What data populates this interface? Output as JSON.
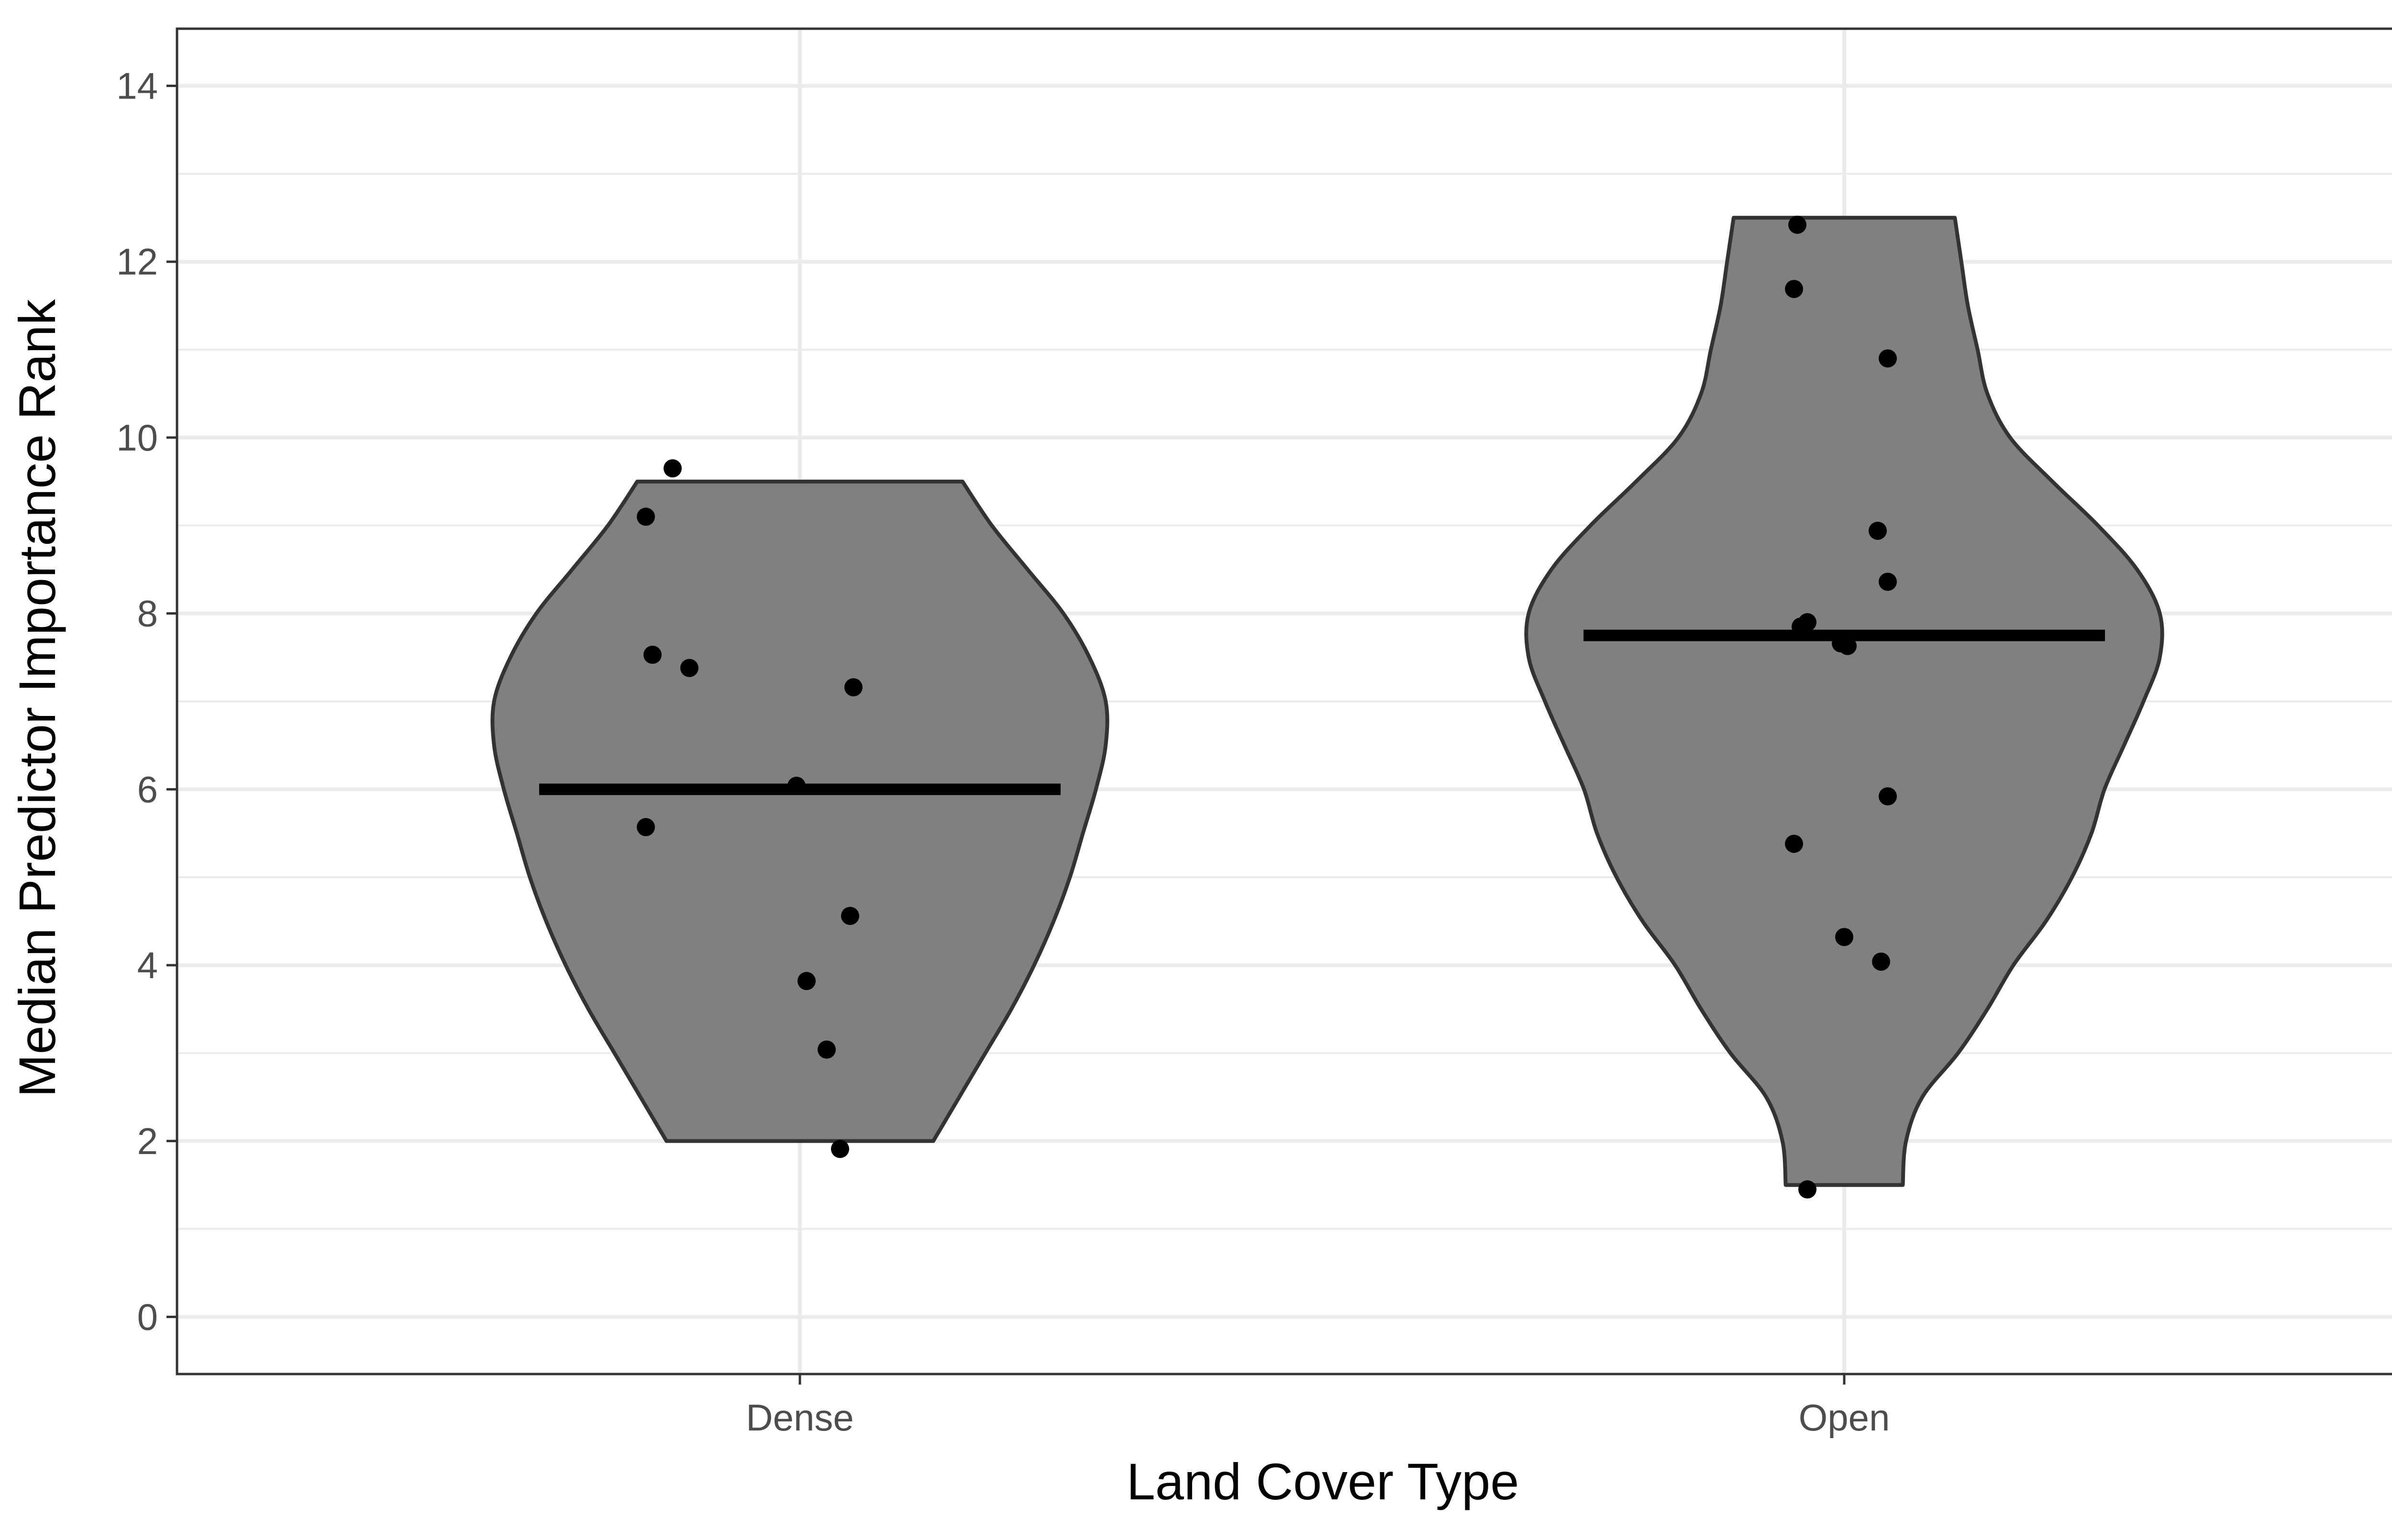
{
  "chart_data": {
    "type": "violin",
    "title": "",
    "xlabel": "Land Cover Type",
    "ylabel": "Median Predictor Importance Rank",
    "categories": [
      "Dense",
      "Open"
    ],
    "ylim": [
      -0.65,
      14.65
    ],
    "yticks": [
      0,
      2,
      4,
      6,
      8,
      10,
      12,
      14
    ],
    "yminor": [
      1,
      3,
      5,
      7,
      9,
      11,
      13
    ],
    "grid": true,
    "legend": "none",
    "colors": {
      "violin_fill": "#808080",
      "violin_stroke": "#333333",
      "points": "#000000",
      "median": "#000000",
      "panel_border": "#333333",
      "grid": "#ebebeb"
    },
    "series": [
      {
        "category": "Dense",
        "median": 6.0,
        "range": [
          2.0,
          9.5
        ],
        "density_profile": [
          [
            2.0,
            0.41
          ],
          [
            2.5,
            0.49
          ],
          [
            3.0,
            0.57
          ],
          [
            3.5,
            0.65
          ],
          [
            4.0,
            0.72
          ],
          [
            4.5,
            0.78
          ],
          [
            5.0,
            0.83
          ],
          [
            5.5,
            0.87
          ],
          [
            6.0,
            0.91
          ],
          [
            6.5,
            0.94
          ],
          [
            7.0,
            0.94
          ],
          [
            7.5,
            0.89
          ],
          [
            8.0,
            0.81
          ],
          [
            8.5,
            0.7
          ],
          [
            9.0,
            0.59
          ],
          [
            9.5,
            0.5
          ]
        ],
        "points": [
          {
            "jitter": 0.12,
            "y": 9.65
          },
          {
            "jitter": 0.04,
            "y": 9.1
          },
          {
            "jitter": 0.06,
            "y": 7.53
          },
          {
            "jitter": 0.17,
            "y": 7.38
          },
          {
            "jitter": 0.66,
            "y": 7.16
          },
          {
            "jitter": 0.49,
            "y": 6.04
          },
          {
            "jitter": 0.04,
            "y": 5.57
          },
          {
            "jitter": 0.65,
            "y": 4.56
          },
          {
            "jitter": 0.52,
            "y": 3.82
          },
          {
            "jitter": 0.58,
            "y": 3.04
          },
          {
            "jitter": 0.62,
            "y": 1.91
          }
        ]
      },
      {
        "category": "Open",
        "median": 7.75,
        "range": [
          1.5,
          12.5
        ],
        "density_profile": [
          [
            1.5,
            0.18
          ],
          [
            2.0,
            0.19
          ],
          [
            2.5,
            0.24
          ],
          [
            3.0,
            0.35
          ],
          [
            3.5,
            0.44
          ],
          [
            4.0,
            0.52
          ],
          [
            4.5,
            0.62
          ],
          [
            5.0,
            0.7
          ],
          [
            5.5,
            0.76
          ],
          [
            6.0,
            0.8
          ],
          [
            6.5,
            0.86
          ],
          [
            7.0,
            0.92
          ],
          [
            7.5,
            0.97
          ],
          [
            8.0,
            0.97
          ],
          [
            8.5,
            0.9
          ],
          [
            9.0,
            0.78
          ],
          [
            9.5,
            0.64
          ],
          [
            10.0,
            0.51
          ],
          [
            10.5,
            0.44
          ],
          [
            11.0,
            0.41
          ],
          [
            11.5,
            0.38
          ],
          [
            12.0,
            0.36
          ],
          [
            12.5,
            0.34
          ]
        ],
        "points": [
          {
            "jitter": 0.36,
            "y": 12.42
          },
          {
            "jitter": 0.35,
            "y": 11.69
          },
          {
            "jitter": 0.63,
            "y": 10.9
          },
          {
            "jitter": 0.6,
            "y": 8.94
          },
          {
            "jitter": 0.63,
            "y": 8.36
          },
          {
            "jitter": 0.39,
            "y": 7.9
          },
          {
            "jitter": 0.37,
            "y": 7.85
          },
          {
            "jitter": 0.49,
            "y": 7.66
          },
          {
            "jitter": 0.51,
            "y": 7.63
          },
          {
            "jitter": 0.63,
            "y": 5.92
          },
          {
            "jitter": 0.35,
            "y": 5.38
          },
          {
            "jitter": 0.5,
            "y": 4.32
          },
          {
            "jitter": 0.61,
            "y": 4.04
          },
          {
            "jitter": 0.39,
            "y": 1.45
          }
        ]
      }
    ]
  }
}
